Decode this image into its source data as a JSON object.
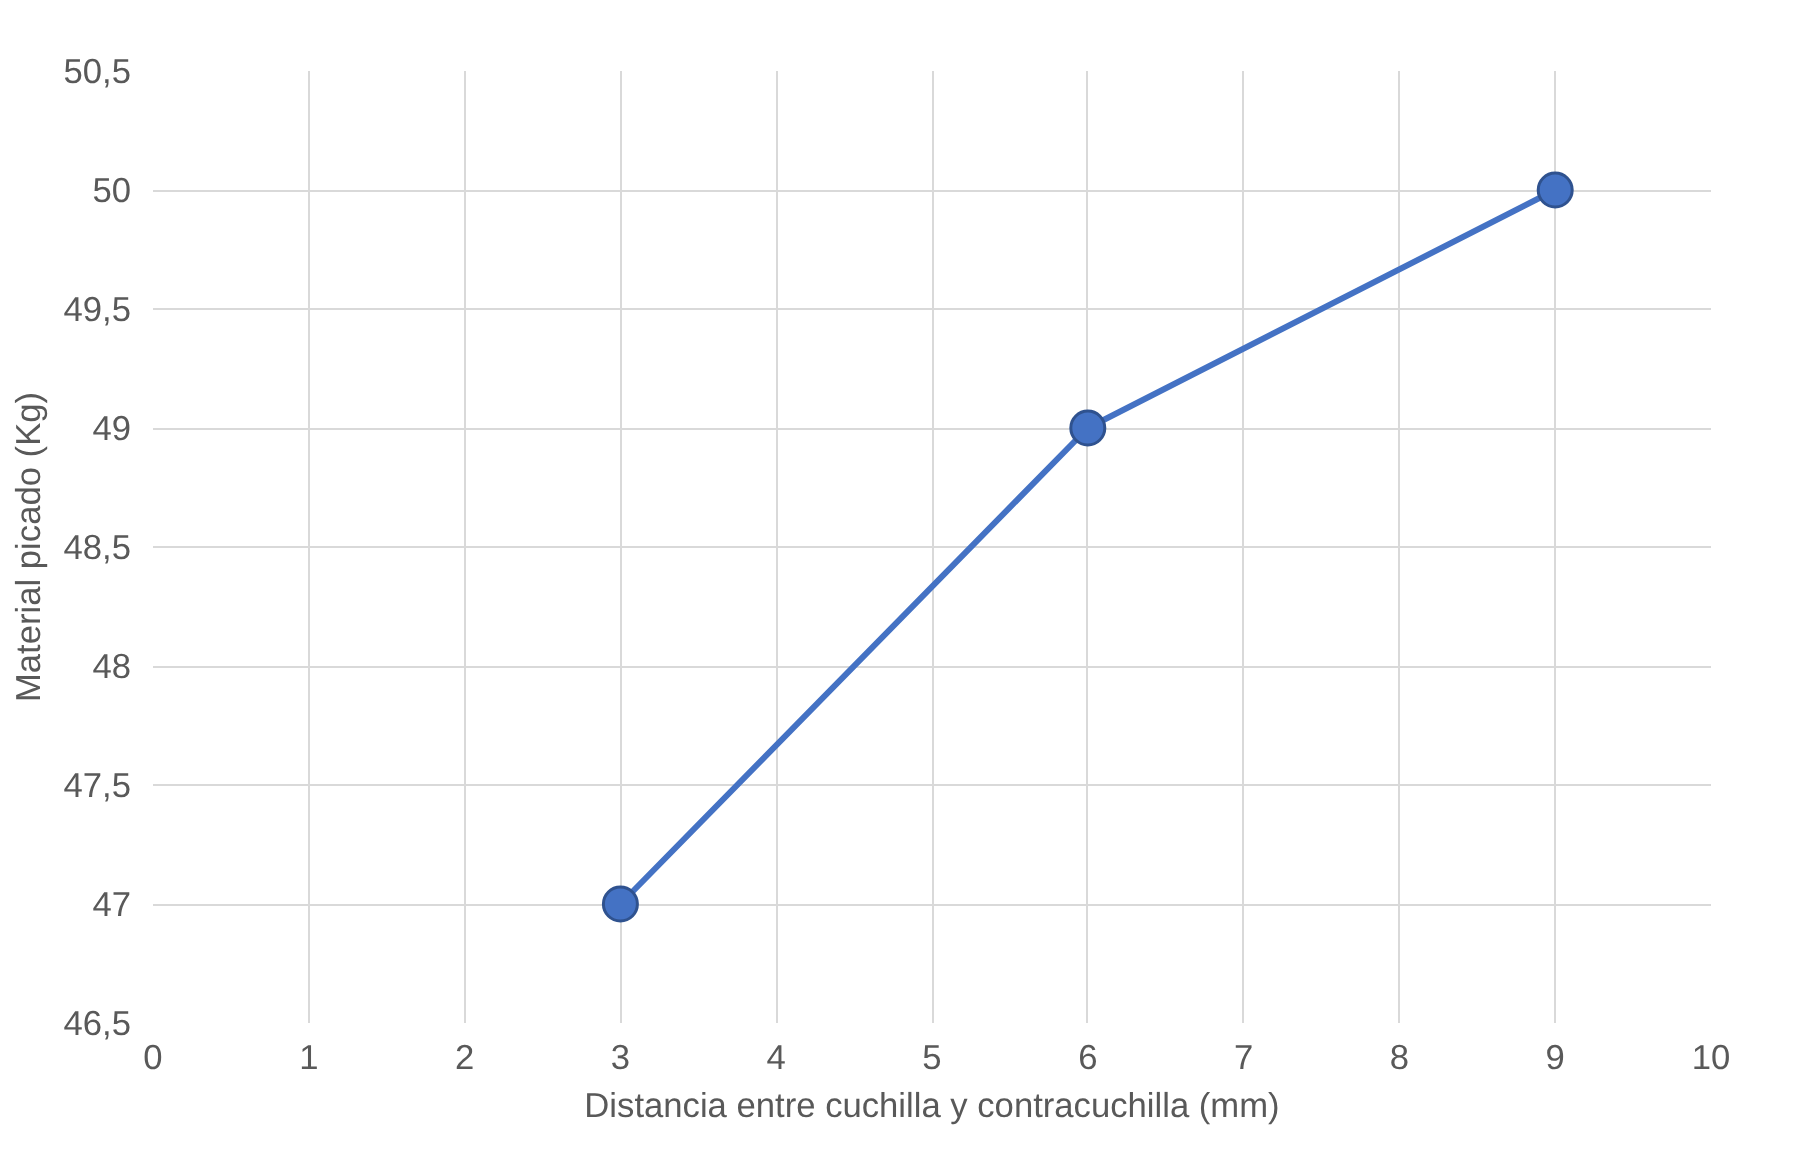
{
  "chart_data": {
    "type": "line",
    "xlabel": "Distancia entre cuchilla y contracuchilla (mm)",
    "ylabel": "Material picado (Kg)",
    "x": [
      3,
      6,
      9
    ],
    "series": [
      {
        "color": "#4472c4",
        "values": [
          47,
          49,
          50
        ]
      }
    ],
    "xlim": [
      0,
      10
    ],
    "xticks": [
      0,
      1,
      2,
      3,
      4,
      5,
      6,
      7,
      8,
      9,
      10
    ],
    "ylim": [
      46.5,
      50.5
    ],
    "yticks": [
      {
        "value": 46.5,
        "label": "46,5"
      },
      47,
      {
        "value": 47.5,
        "label": "47,5"
      },
      48,
      {
        "value": 48.5,
        "label": "48,5"
      },
      49,
      {
        "value": 49.5,
        "label": "49,5"
      },
      50,
      {
        "value": 50.5,
        "label": "50,5"
      }
    ],
    "grid": true,
    "marker": "circle",
    "line_style": "solid"
  }
}
